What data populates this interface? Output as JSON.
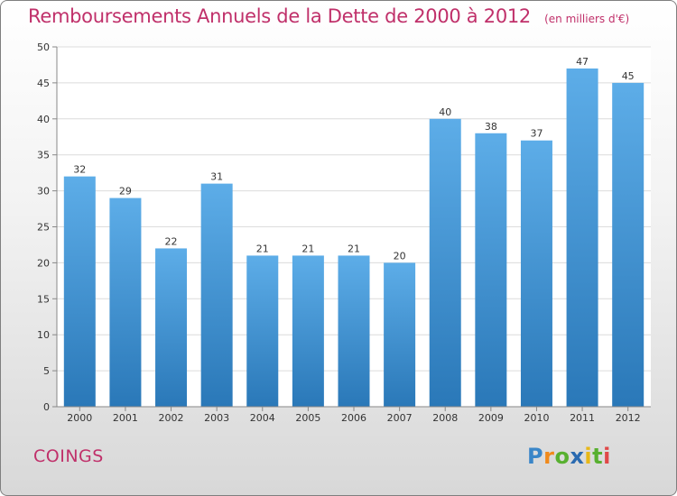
{
  "chart_data": {
    "type": "bar",
    "title": "Remboursements Annuels de la Dette de 2000 à 2012",
    "subtitle": "(en milliers d'€)",
    "categories": [
      "2000",
      "2001",
      "2002",
      "2003",
      "2004",
      "2005",
      "2006",
      "2007",
      "2008",
      "2009",
      "2010",
      "2011",
      "2012"
    ],
    "values": [
      32,
      29,
      22,
      31,
      21,
      21,
      21,
      20,
      40,
      38,
      37,
      47,
      45
    ],
    "xlabel": "",
    "ylabel": "",
    "ylim": [
      0,
      50
    ],
    "yticks": [
      0,
      5,
      10,
      15,
      20,
      25,
      30,
      35,
      40,
      45,
      50
    ],
    "grid": true,
    "bar_color_top": "#5dade8",
    "bar_color_bottom": "#2a78b8"
  },
  "footer": {
    "commune": "COINGS",
    "logo": {
      "letters": [
        "P",
        "r",
        "o",
        "x",
        "i",
        "t",
        "i"
      ],
      "colors": [
        "#3a86c8",
        "#f08a1c",
        "#58b030",
        "#2a6ab0",
        "#e8b818",
        "#58b030",
        "#e04848"
      ]
    }
  }
}
